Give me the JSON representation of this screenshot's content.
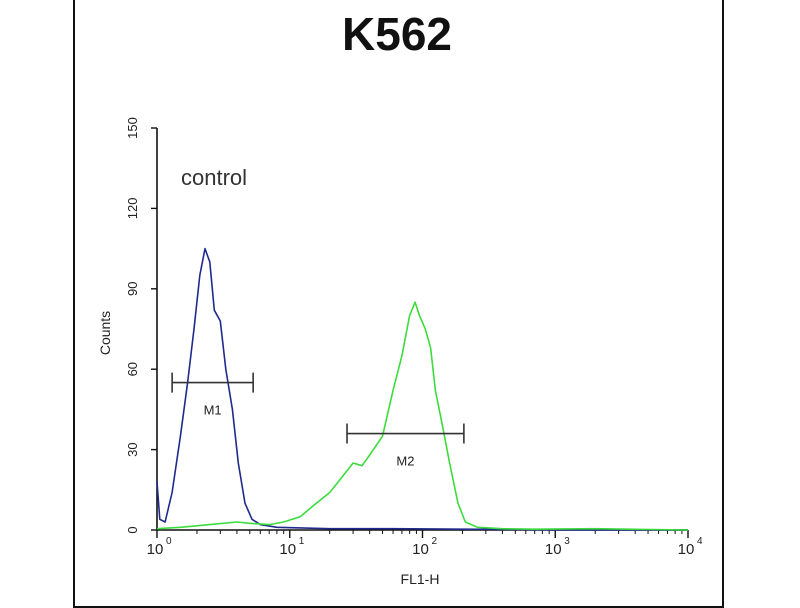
{
  "chart_data": {
    "type": "line",
    "title": "K562",
    "xlabel": "FL1-H",
    "ylabel": "Counts",
    "xscale": "log",
    "xlim": [
      1,
      10000
    ],
    "ylim": [
      0,
      150
    ],
    "grid": false,
    "x_ticks": [
      {
        "base": "10",
        "exp": "0",
        "value": 1
      },
      {
        "base": "10",
        "exp": "1",
        "value": 10
      },
      {
        "base": "10",
        "exp": "2",
        "value": 100
      },
      {
        "base": "10",
        "exp": "3",
        "value": 1000
      },
      {
        "base": "10",
        "exp": "4",
        "value": 10000
      }
    ],
    "y_ticks": [
      "0",
      "30",
      "60",
      "90",
      "120",
      "150"
    ],
    "annotation": "control",
    "series": [
      {
        "color": "#1f2a8c",
        "points": [
          [
            1.0,
            18
          ],
          [
            1.05,
            4
          ],
          [
            1.15,
            3
          ],
          [
            1.3,
            14
          ],
          [
            1.5,
            35
          ],
          [
            1.7,
            55
          ],
          [
            1.9,
            75
          ],
          [
            2.1,
            95
          ],
          [
            2.3,
            105
          ],
          [
            2.5,
            100
          ],
          [
            2.7,
            82
          ],
          [
            3.0,
            78
          ],
          [
            3.3,
            60
          ],
          [
            3.7,
            45
          ],
          [
            4.1,
            25
          ],
          [
            4.6,
            10
          ],
          [
            5.2,
            4
          ],
          [
            6,
            2
          ],
          [
            8,
            1
          ],
          [
            20,
            0.5
          ],
          [
            60,
            0.5
          ],
          [
            200,
            0.3
          ],
          [
            500,
            0.2
          ],
          [
            1000,
            0
          ],
          [
            10000,
            0
          ]
        ]
      },
      {
        "color": "#3ddc3d",
        "points": [
          [
            1.0,
            0.5
          ],
          [
            1.5,
            1
          ],
          [
            2.5,
            2
          ],
          [
            4,
            3
          ],
          [
            5,
            2.5
          ],
          [
            7,
            2
          ],
          [
            9,
            3
          ],
          [
            12,
            5
          ],
          [
            15,
            9
          ],
          [
            20,
            14
          ],
          [
            25,
            20
          ],
          [
            30,
            25
          ],
          [
            35,
            24
          ],
          [
            40,
            28
          ],
          [
            50,
            35
          ],
          [
            60,
            52
          ],
          [
            70,
            65
          ],
          [
            80,
            80
          ],
          [
            88,
            85
          ],
          [
            95,
            80
          ],
          [
            105,
            75
          ],
          [
            115,
            68
          ],
          [
            125,
            52
          ],
          [
            140,
            40
          ],
          [
            160,
            25
          ],
          [
            185,
            10
          ],
          [
            210,
            3
          ],
          [
            260,
            1
          ],
          [
            400,
            0.5
          ],
          [
            700,
            0.3
          ],
          [
            2000,
            0.5
          ],
          [
            10000,
            0
          ]
        ]
      }
    ],
    "markers": [
      {
        "label": "M1",
        "x0": 1.3,
        "x1": 5.3,
        "y": 55
      },
      {
        "label": "M2",
        "x0": 27,
        "x1": 205,
        "y": 36
      }
    ]
  }
}
